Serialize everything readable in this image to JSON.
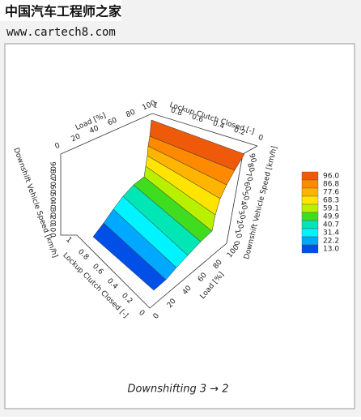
{
  "header": {
    "watermark": "中国汽车工程师之家",
    "url": "www.cartech8.com"
  },
  "chart": {
    "type": "surface3d",
    "title": "Downshifting 3 → 2",
    "axes": {
      "load": {
        "label": "Load [%]",
        "ticks": [
          0,
          20,
          40,
          60,
          80,
          100
        ]
      },
      "lockup": {
        "label": "Lockup Clutch Closed [-]",
        "ticks": [
          0,
          0.2,
          0.4,
          0.6,
          0.8,
          1
        ]
      },
      "speed": {
        "label": "Downshift Vehicle Speed [km/h]",
        "ticks": [
          0,
          10,
          20,
          30,
          40,
          50,
          60,
          70,
          80,
          90
        ]
      }
    },
    "colorbar": {
      "levels": [
        {
          "value": 96.0,
          "label": "96.0"
        },
        {
          "value": 86.8,
          "label": "86.8"
        },
        {
          "value": 77.6,
          "label": "77.6"
        },
        {
          "value": 68.3,
          "label": "68.3"
        },
        {
          "value": 59.1,
          "label": "59.1"
        },
        {
          "value": 49.9,
          "label": "49.9"
        },
        {
          "value": 40.7,
          "label": "40.7"
        },
        {
          "value": 31.4,
          "label": "31.4"
        },
        {
          "value": 22.2,
          "label": "22.2"
        },
        {
          "value": 13.0,
          "label": "13.0"
        }
      ],
      "colors": [
        "#ee5a0a",
        "#ff8a00",
        "#ffb400",
        "#ffe400",
        "#b8f000",
        "#40dc20",
        "#00e6b4",
        "#00f4ff",
        "#00a8ff",
        "#0050e8"
      ]
    }
  }
}
